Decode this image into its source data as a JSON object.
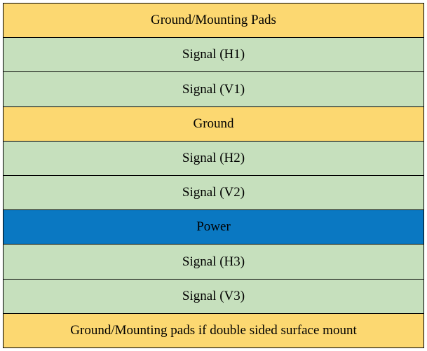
{
  "stackup": {
    "type": "table",
    "colors": {
      "ground": "#fcd871",
      "signal": "#c6e0bd",
      "power": "#0a78c2",
      "border": "#000000",
      "text": "#000000",
      "background": "#ffffff"
    },
    "layer_fontsize": 19,
    "font_family": "Georgia, serif",
    "border_width": 1,
    "layers": [
      {
        "label": "Ground/Mounting Pads",
        "kind": "ground",
        "color": "#fcd871"
      },
      {
        "label": "Signal (H1)",
        "kind": "signal",
        "color": "#c6e0bd"
      },
      {
        "label": "Signal (V1)",
        "kind": "signal",
        "color": "#c6e0bd"
      },
      {
        "label": "Ground",
        "kind": "ground",
        "color": "#fcd871"
      },
      {
        "label": "Signal (H2)",
        "kind": "signal",
        "color": "#c6e0bd"
      },
      {
        "label": "Signal (V2)",
        "kind": "signal",
        "color": "#c6e0bd"
      },
      {
        "label": "Power",
        "kind": "power",
        "color": "#0a78c2"
      },
      {
        "label": "Signal (H3)",
        "kind": "signal",
        "color": "#c6e0bd"
      },
      {
        "label": "Signal (V3)",
        "kind": "signal",
        "color": "#c6e0bd"
      },
      {
        "label": "Ground/Mounting pads if double sided surface mount",
        "kind": "ground",
        "color": "#fcd871"
      }
    ]
  }
}
